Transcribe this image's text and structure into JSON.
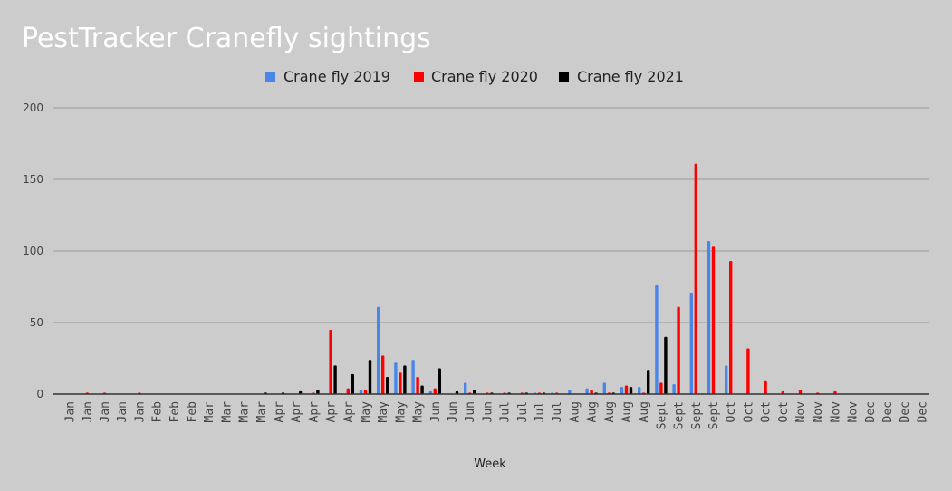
{
  "chart_data": {
    "type": "bar",
    "title": "PestTracker Cranefly sightings",
    "xlabel": "Week",
    "ylabel": "",
    "ylim": [
      0,
      200
    ],
    "yticks": [
      0,
      50,
      100,
      150,
      200
    ],
    "grid": true,
    "legend_position": "top",
    "categories": [
      "Jan",
      "Jan",
      "Jan",
      "Jan",
      "Jan",
      "Feb",
      "Feb",
      "Feb",
      "Mar",
      "Mar",
      "Mar",
      "Mar",
      "Apr",
      "Apr",
      "Apr",
      "Apr",
      "Apr",
      "May",
      "May",
      "May",
      "May",
      "Jun",
      "Jun",
      "Jun",
      "Jun",
      "Jul",
      "Jul",
      "Jul",
      "Jul",
      "Aug",
      "Aug",
      "Aug",
      "Aug",
      "Aug",
      "Sept",
      "Sept",
      "Sept",
      "Sept",
      "Oct",
      "Oct",
      "Oct",
      "Oct",
      "Nov",
      "Nov",
      "Nov",
      "Nov",
      "Dec",
      "Dec",
      "Dec",
      "Dec"
    ],
    "series": [
      {
        "name": "Crane fly 2019",
        "color": "#4a86e8",
        "values": [
          0,
          0,
          0,
          0,
          0,
          0,
          0,
          0,
          0,
          0,
          0,
          0,
          0,
          0,
          0,
          0,
          0,
          3,
          61,
          22,
          24,
          2,
          0,
          8,
          0,
          0,
          0,
          1,
          1,
          3,
          4,
          8,
          5,
          5,
          76,
          7,
          71,
          107,
          20,
          0,
          0,
          0,
          0,
          0,
          0,
          0,
          0,
          0,
          0,
          0
        ]
      },
      {
        "name": "Crane fly 2020",
        "color": "#ff0000",
        "values": [
          0,
          1,
          1,
          0,
          1,
          0,
          0,
          0,
          0,
          0,
          0,
          0,
          0,
          0,
          1,
          45,
          4,
          3,
          27,
          15,
          12,
          4,
          0,
          1,
          1,
          1,
          1,
          1,
          1,
          0,
          3,
          1,
          6,
          1,
          8,
          61,
          161,
          103,
          93,
          32,
          9,
          2,
          3,
          1,
          2,
          0,
          0,
          0,
          0,
          0
        ]
      },
      {
        "name": "Crane fly 2021",
        "color": "#000000",
        "values": [
          0,
          0,
          0,
          0,
          0,
          0,
          0,
          0,
          0,
          0,
          0,
          1,
          1,
          2,
          3,
          20,
          14,
          24,
          12,
          20,
          6,
          18,
          2,
          3,
          1,
          1,
          1,
          1,
          0,
          0,
          1,
          1,
          5,
          17,
          40,
          0,
          0,
          0,
          0,
          0,
          0,
          0,
          0,
          0,
          0,
          0,
          0,
          0,
          0,
          0
        ]
      }
    ]
  }
}
